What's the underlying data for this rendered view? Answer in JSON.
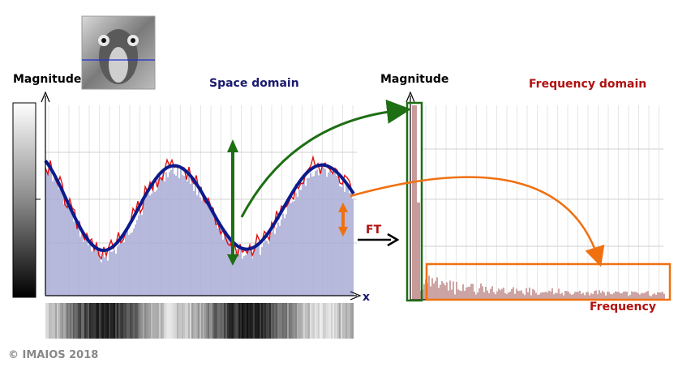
{
  "left_panel": {
    "y_label": "Magnitude",
    "title": "Space domain",
    "x_label": "x",
    "thumbnail_icon": "baboon-image-thumbnail"
  },
  "right_panel": {
    "y_label": "Magnitude",
    "title": "Frequency domain",
    "x_label": "Frequency"
  },
  "transform_label": "FT",
  "copyright": "© IMAIOS 2018",
  "colors": {
    "title_space": "#1a1a6e",
    "title_frequency": "#b01010",
    "sine_curve": "#0b1a8c",
    "signal_line": "#e01010",
    "histogram_fill": "#a9acd6",
    "spectrum_fill": "#c89a9a",
    "green_arrow": "#1e6e14",
    "orange_arrow": "#f07010"
  }
}
